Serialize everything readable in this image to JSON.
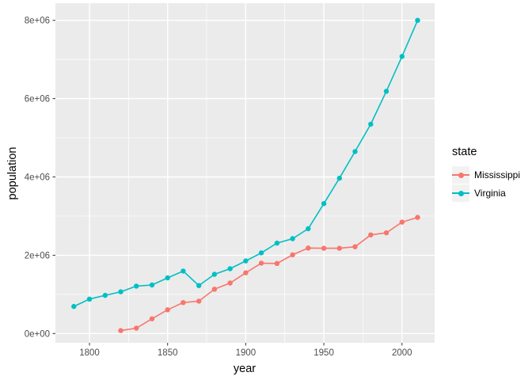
{
  "figure": {
    "background": "#FFFFFF"
  },
  "chart_data": {
    "type": "line",
    "title": "",
    "xlabel": "year",
    "ylabel": "population",
    "legend_title": "state",
    "legend_position": "right",
    "grid": "on",
    "xlim": [
      1778.2,
      2020.9
    ],
    "ylim": [
      -236600,
      8439000
    ],
    "x_ticks": [
      1800,
      1850,
      1900,
      1950,
      2000
    ],
    "x_tick_labels": [
      "1800",
      "1850",
      "1900",
      "1950",
      "2000"
    ],
    "y_ticks": [
      0,
      2000000,
      4000000,
      6000000,
      8000000
    ],
    "y_tick_labels": [
      "0e+00",
      "2e+06",
      "4e+06",
      "6e+06",
      "8e+06"
    ],
    "x_minor_ticks": [
      1825,
      1875,
      1925,
      1975
    ],
    "y_minor_ticks": [
      1000000,
      3000000,
      5000000,
      7000000
    ],
    "colors": {
      "panel_bg": "#EBEBEB",
      "grid": "#FFFFFF",
      "tick_mark": "#333333",
      "tick_label": "#4D4D4D",
      "legend_key_bg": "#F2F2F2"
    },
    "series": [
      {
        "name": "Mississippi",
        "color": "#F8766D",
        "x": [
          1820,
          1830,
          1840,
          1850,
          1860,
          1870,
          1880,
          1890,
          1900,
          1910,
          1920,
          1930,
          1940,
          1950,
          1960,
          1970,
          1980,
          1990,
          2000,
          2010
        ],
        "y": [
          75448,
          136621,
          375651,
          606526,
          791305,
          827922,
          1131597,
          1289600,
          1551270,
          1797114,
          1790618,
          2009821,
          2183796,
          2178914,
          2178141,
          2216912,
          2520638,
          2573216,
          2844658,
          2967297
        ]
      },
      {
        "name": "Virginia",
        "color": "#00BFC4",
        "x": [
          1790,
          1800,
          1810,
          1820,
          1830,
          1840,
          1850,
          1860,
          1870,
          1880,
          1890,
          1900,
          1910,
          1920,
          1930,
          1940,
          1950,
          1960,
          1970,
          1980,
          1990,
          2000,
          2010
        ],
        "y": [
          691737,
          880200,
          974600,
          1065366,
          1211405,
          1239797,
          1421661,
          1596318,
          1225163,
          1512565,
          1655980,
          1854184,
          2061612,
          2309187,
          2421851,
          2677773,
          3318680,
          3966949,
          4648494,
          5346818,
          6187358,
          7078515,
          8001024
        ]
      }
    ]
  }
}
